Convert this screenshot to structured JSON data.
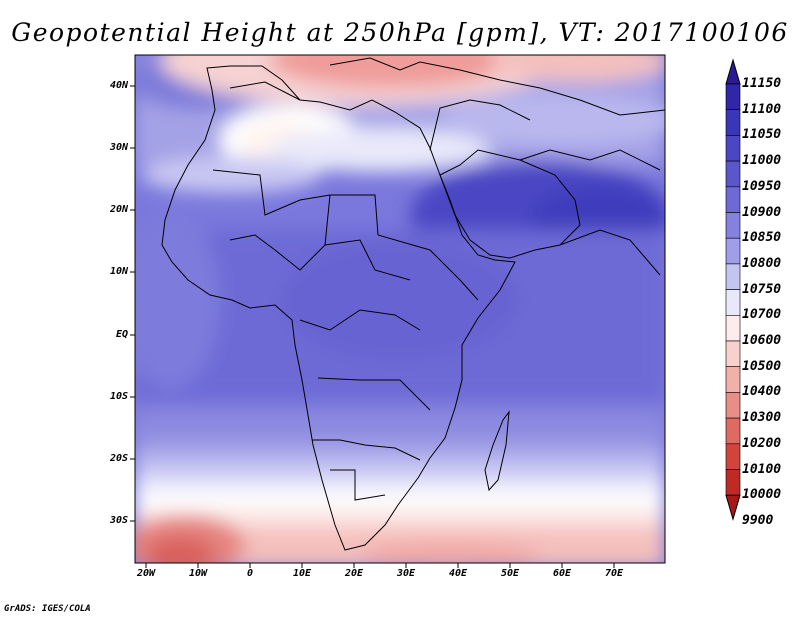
{
  "title": "Geopotential Height at 250hPa [gpm], VT: 2017100106",
  "footer": "GrADS: IGES/COLA",
  "map": {
    "lat_labels": [
      "40N",
      "30N",
      "20N",
      "10N",
      "EQ",
      "10S",
      "20S",
      "30S"
    ],
    "lon_labels": [
      "20W",
      "10W",
      "0",
      "10E",
      "20E",
      "30E",
      "40E",
      "50E",
      "60E",
      "70E"
    ]
  },
  "colorbar": {
    "labels": [
      "11150",
      "11100",
      "11050",
      "11000",
      "10950",
      "10900",
      "10850",
      "10800",
      "10750",
      "10700",
      "10600",
      "10500",
      "10400",
      "10300",
      "10200",
      "10100",
      "10000",
      "9900"
    ],
    "colors": [
      "#2a1a96",
      "#2f26a8",
      "#3a36b8",
      "#4a46c4",
      "#5a57cc",
      "#6d6ad6",
      "#8482de",
      "#a09ee8",
      "#c4c4f2",
      "#e8e8fa",
      "#fdeceb",
      "#f8d0cc",
      "#f2b0aa",
      "#e98e87",
      "#de6a62",
      "#d0443c",
      "#bf2a24",
      "#a51a16"
    ]
  }
}
